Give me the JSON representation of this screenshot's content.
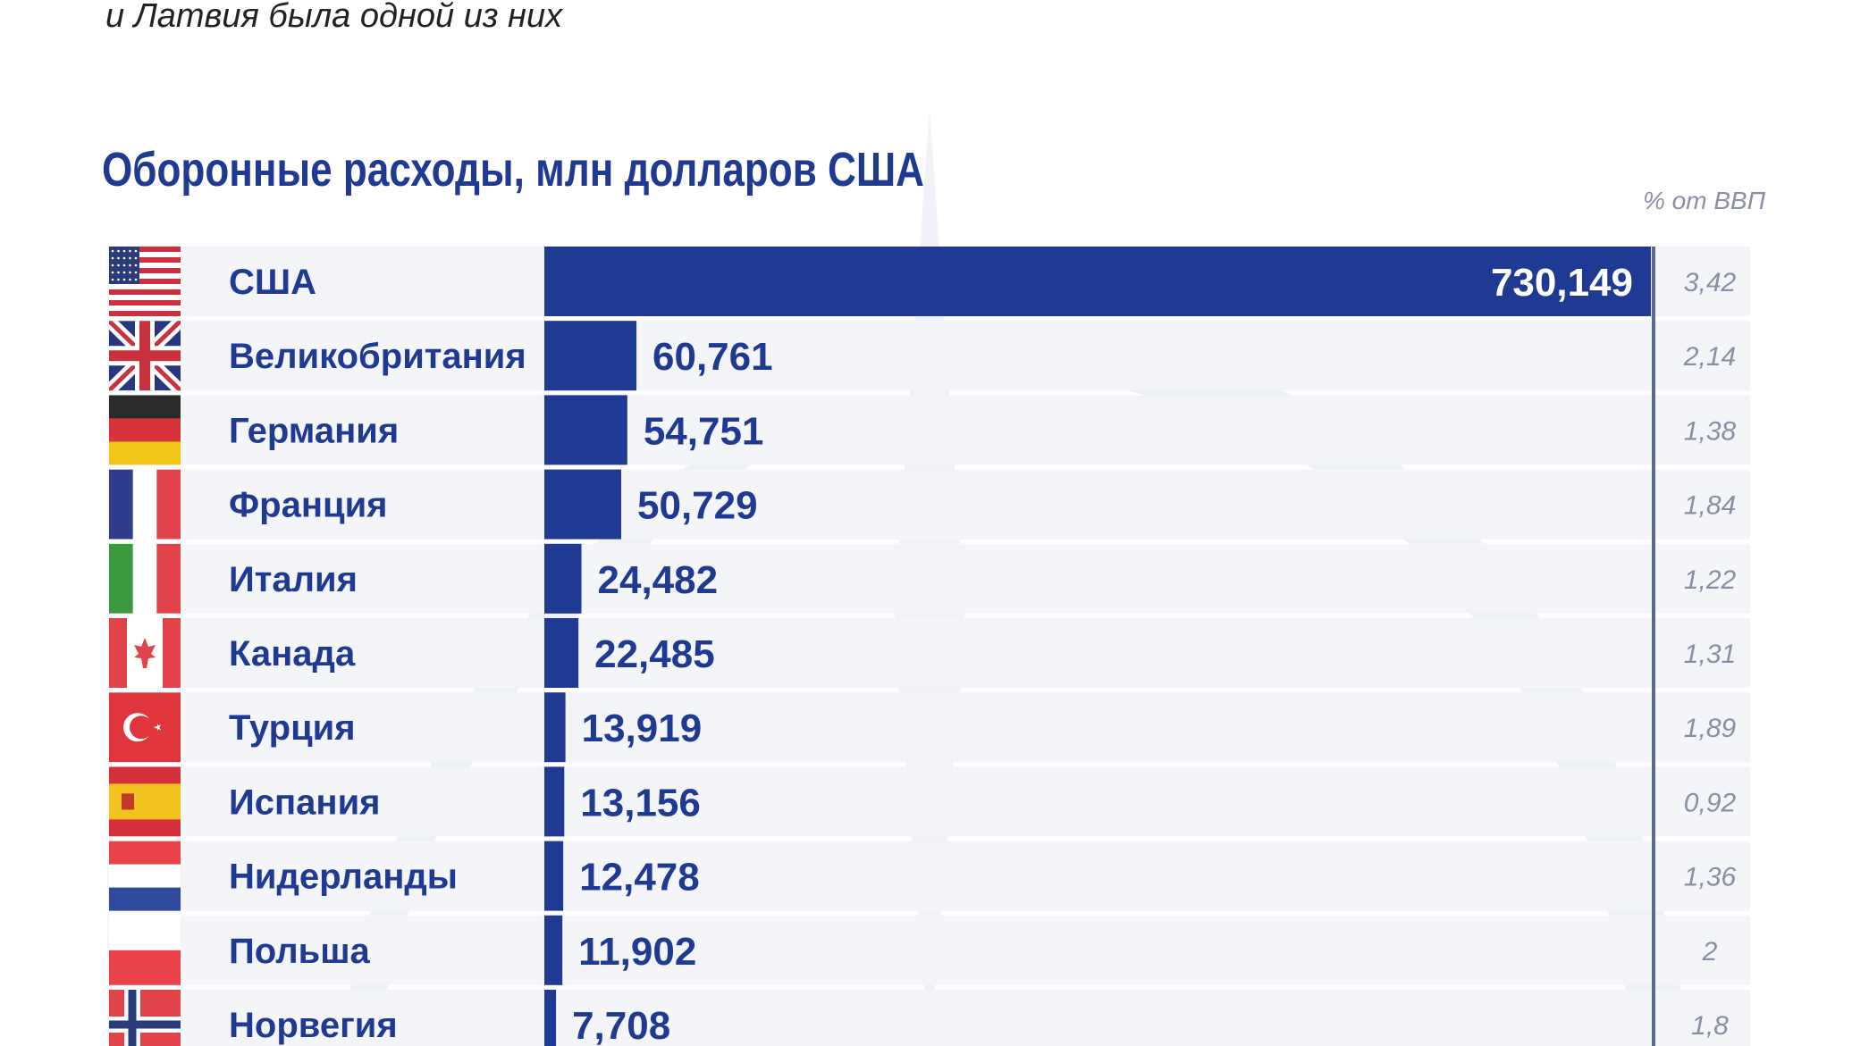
{
  "intro_text": "и Латвия была одной из них",
  "colors": {
    "bar": "#1f3a93",
    "title": "#1f3a93",
    "country_text": "#1f3a93",
    "pct_text": "#8a8fa3",
    "row_bg": "#f3f5f8",
    "divider": "#5a6a8a",
    "watermark": "#eef1f6"
  },
  "chart_data": {
    "type": "bar",
    "orientation": "horizontal",
    "title": "Оборонные расходы, млн долларов США",
    "secondary_column_label": "% от ВВП",
    "grid": false,
    "legend": "none",
    "xlim": [
      0,
      730149
    ],
    "categories": [
      "США",
      "Великобритания",
      "Германия",
      "Франция",
      "Италия",
      "Канада",
      "Турция",
      "Испания",
      "Нидерланды",
      "Польша",
      "Норвегия"
    ],
    "values": [
      730149,
      60761,
      54751,
      50729,
      24482,
      22485,
      13919,
      13156,
      12478,
      11902,
      7708
    ],
    "value_labels": [
      "730,149",
      "60,761",
      "54,751",
      "50,729",
      "24,482",
      "22,485",
      "13,919",
      "13,156",
      "12,478",
      "11,902",
      "7,708"
    ],
    "gdp_share": [
      "3,42",
      "2,14",
      "1,38",
      "1,84",
      "1,22",
      "1,31",
      "1,89",
      "0,92",
      "1,36",
      "2",
      "1,8"
    ],
    "flag_icons": [
      "flag-usa-icon",
      "flag-uk-icon",
      "flag-germany-icon",
      "flag-france-icon",
      "flag-italy-icon",
      "flag-canada-icon",
      "flag-turkey-icon",
      "flag-spain-icon",
      "flag-netherlands-icon",
      "flag-poland-icon",
      "flag-norway-icon"
    ]
  }
}
